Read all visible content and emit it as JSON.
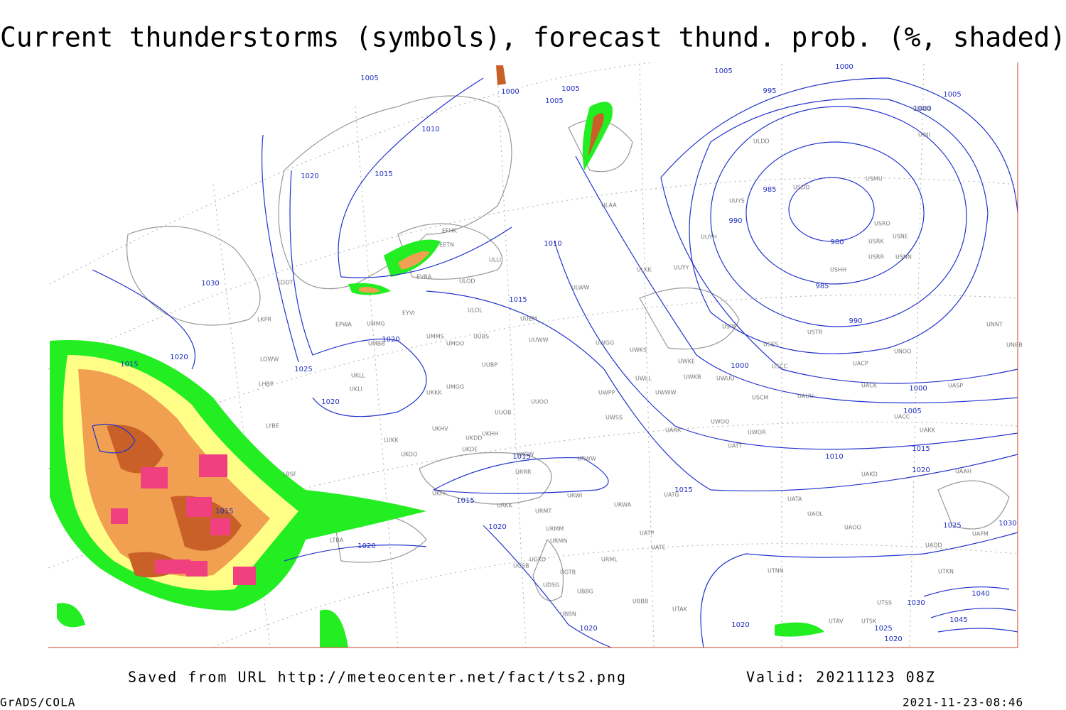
{
  "header": {
    "title": "Current thunderstorms (symbols), forecast thund. prob. (%, shaded)"
  },
  "footer": {
    "source": "Saved from URL http://meteocenter.net/fact/ts2.png",
    "valid": "Valid: 20211123 08Z",
    "software": "GrADS/COLA",
    "timestamp": "2021-11-23-08:46"
  },
  "isobar_labels": [
    "1005",
    "1000",
    "1005",
    "1005",
    "1010",
    "1015",
    "1020",
    "1030",
    "1010",
    "1015",
    "1020",
    "1020",
    "1015",
    "1025",
    "1020",
    "1015",
    "1015",
    "1015",
    "1020",
    "1020",
    "1015",
    "1005",
    "1000",
    "995",
    "985",
    "990",
    "980",
    "985",
    "990",
    "1000",
    "1000",
    "1005",
    "1010",
    "1015",
    "1020",
    "1025",
    "1030",
    "1020",
    "1020",
    "1025",
    "1020",
    "1030",
    "1040",
    "1045",
    "1005",
    "1000"
  ],
  "stations": [
    "ULDD",
    "USDD",
    "USMU",
    "UUYS",
    "UUYH",
    "UUYY",
    "ULKK",
    "ULAA",
    "ULWW",
    "UUEM",
    "UUWW",
    "UWGG",
    "UWKS",
    "UWKE",
    "UWKB",
    "UWUU",
    "UWLL",
    "UWWW",
    "UWPP",
    "UWSS",
    "UARR",
    "UWOO",
    "UWOR",
    "UATT",
    "URWW",
    "URWA",
    "URWI",
    "UATG",
    "UATE",
    "UATP",
    "URML",
    "UBBB",
    "UTAK",
    "UUOB",
    "UUOO",
    "UKHH",
    "UKHV",
    "UKDD",
    "UKDE",
    "UKCW",
    "URRR",
    "UKFF",
    "URKK",
    "URMT",
    "URMM",
    "URMN",
    "UGKO",
    "UGSB",
    "UGTB",
    "UDSG",
    "UBBG",
    "UBBN",
    "UKOO",
    "LUKK",
    "LBSF",
    "LTBA",
    "UMMS",
    "UMOO",
    "UUBS",
    "UMMG",
    "UMBB",
    "UUBP",
    "UMGG",
    "UKKK",
    "UKLL",
    "UKLI",
    "LKPR",
    "LOWW",
    "LHBP",
    "LYBE",
    "EPWA",
    "EYVI",
    "ULOL",
    "ULOD",
    "ULLI",
    "EETN",
    "EFHK",
    "EVRA",
    "EDDT",
    "USSS",
    "USTR",
    "USPP",
    "USCC",
    "USCM",
    "UAUU",
    "UACC",
    "UACK",
    "UACP",
    "UASP",
    "UAKK",
    "UAKD",
    "UAAH",
    "UATA",
    "UAOL",
    "UAOO",
    "UTNN",
    "UTSS",
    "UTAV",
    "UTSK",
    "UTKN",
    "UADD",
    "UAFM",
    "USRO",
    "USRK",
    "USNE",
    "USRR",
    "USNN",
    "USHH",
    "UNOO",
    "UNNT",
    "UNBB",
    "UOOO",
    "UOII"
  ]
}
